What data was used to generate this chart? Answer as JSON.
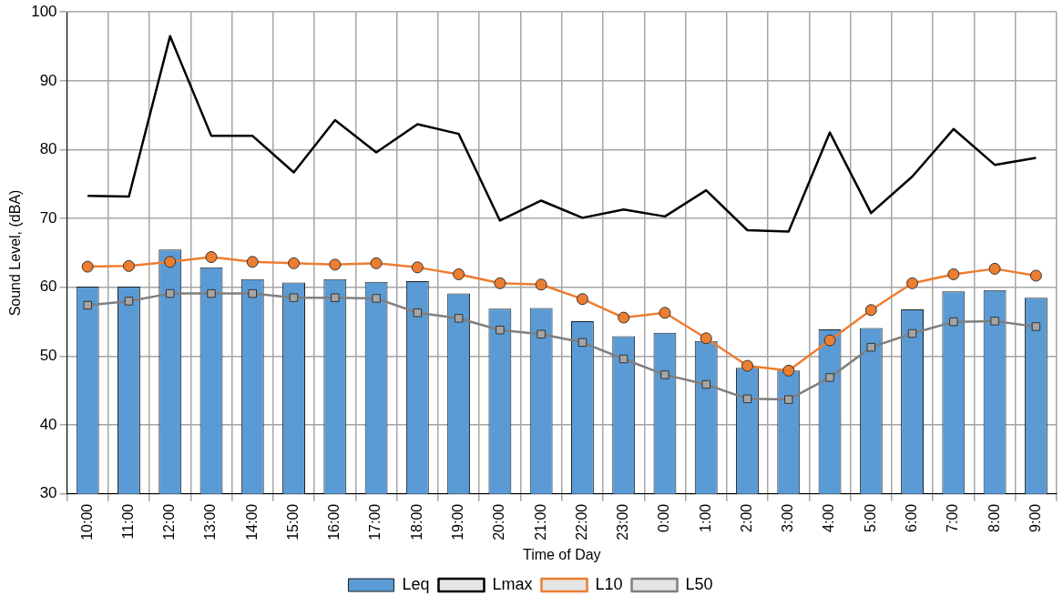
{
  "chart_data": {
    "type": "bar",
    "xlabel": "Time of Day",
    "ylabel": "Sound Level, (dBA)",
    "categories": [
      "10:00",
      "11:00",
      "12:00",
      "13:00",
      "14:00",
      "15:00",
      "16:00",
      "17:00",
      "18:00",
      "19:00",
      "20:00",
      "21:00",
      "22:00",
      "23:00",
      "0:00",
      "1:00",
      "2:00",
      "3:00",
      "4:00",
      "5:00",
      "6:00",
      "7:00",
      "8:00",
      "9:00"
    ],
    "ylim": [
      30,
      100
    ],
    "yticks": [
      30,
      40,
      50,
      60,
      70,
      80,
      90,
      100
    ],
    "grid": true,
    "legend": "bottom",
    "series": [
      {
        "name": "Leq",
        "color": "#5b9bd5",
        "values": [
          60.1,
          60.1,
          65.5,
          62.9,
          61.2,
          60.7,
          61.2,
          60.8,
          60.9,
          59.1,
          56.9,
          57.0,
          55.1,
          52.9,
          53.4,
          52.2,
          48.3,
          47.9,
          53.9,
          54.1,
          56.8,
          59.4,
          59.6,
          58.5
        ]
      },
      {
        "name": "Lmax",
        "type": "line",
        "color": "#000000",
        "marker": "none",
        "values": [
          73.3,
          73.2,
          96.5,
          82.0,
          82.0,
          76.7,
          84.3,
          79.6,
          83.7,
          82.3,
          69.7,
          72.6,
          70.1,
          71.3,
          70.3,
          74.1,
          68.3,
          68.1,
          82.5,
          70.8,
          76.1,
          83.0,
          77.8,
          78.8
        ]
      },
      {
        "name": "L10",
        "type": "line",
        "color": "#ed7d31",
        "marker": "circle",
        "values": [
          63.0,
          63.1,
          63.7,
          64.4,
          63.7,
          63.5,
          63.3,
          63.5,
          62.9,
          61.9,
          60.6,
          60.4,
          58.3,
          55.6,
          56.3,
          52.6,
          48.6,
          47.9,
          52.3,
          56.7,
          60.6,
          61.9,
          62.7,
          61.7
        ]
      },
      {
        "name": "L50",
        "type": "line",
        "color": "#7f7f7f",
        "marker": "square",
        "values": [
          57.4,
          58.0,
          59.1,
          59.1,
          59.1,
          58.5,
          58.5,
          58.4,
          56.3,
          55.5,
          53.8,
          53.2,
          52.0,
          49.6,
          47.3,
          45.9,
          43.8,
          43.7,
          46.9,
          51.3,
          53.3,
          55.0,
          55.1,
          54.3
        ]
      }
    ]
  }
}
